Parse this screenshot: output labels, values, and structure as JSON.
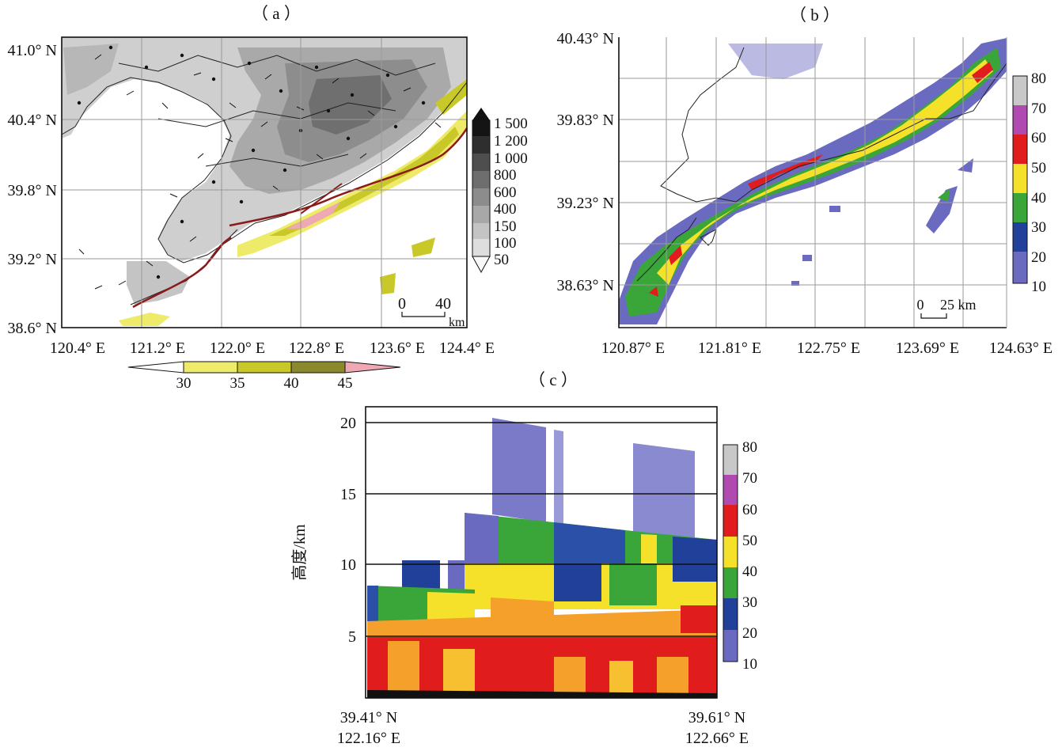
{
  "panels": {
    "a": {
      "label": "（ a ）",
      "lat_ticks": [
        "41.0° N",
        "40.4° N",
        "39.8° N",
        "39.2° N",
        "38.6° N"
      ],
      "lon_ticks": [
        "120.4° E",
        "121.2° E",
        "122.0° E",
        "122.8° E",
        "123.6° E",
        "124.4° E"
      ],
      "scale_zero": "0",
      "scale_value": "40",
      "scale_unit": "km",
      "terrain_colorbar": [
        "1 500",
        "1 200",
        "1 000",
        "800",
        "600",
        "400",
        "150",
        "100",
        "50"
      ],
      "shading_colorbar": [
        "30",
        "35",
        "40",
        "45"
      ]
    },
    "b": {
      "label": "（ b ）",
      "lat_ticks": [
        "40.43° N",
        "39.83° N",
        "39.23° N",
        "38.63° N"
      ],
      "lon_ticks": [
        "120.87° E",
        "121.81° E",
        "122.75° E",
        "123.69° E",
        "124.63° E"
      ],
      "scale_zero": "0",
      "scale_value": "25 km",
      "colorbar": [
        "80",
        "70",
        "60",
        "50",
        "40",
        "30",
        "20",
        "10"
      ]
    },
    "c": {
      "label": "（ c ）",
      "ylabel": "高度/km",
      "y_ticks": [
        "20",
        "15",
        "10",
        "5"
      ],
      "x_left": [
        "39.41° N",
        "122.16° E"
      ],
      "x_right": [
        "39.61° N",
        "122.66° E"
      ],
      "colorbar": [
        "80",
        "70",
        "60",
        "50",
        "40",
        "30",
        "20",
        "10"
      ]
    }
  },
  "colors": {
    "refl_80": "#c8c8c8",
    "refl_70": "#b04ab0",
    "refl_60": "#e01c1c",
    "refl_50": "#f5e12a",
    "refl_40": "#3aa63a",
    "refl_30": "#20409a",
    "refl_20": "#6a6ac0",
    "shade_30": "#eeea6a",
    "shade_35": "#c8c828",
    "shade_40": "#8a8a2c",
    "shade_45": "#f0a8b4",
    "front_line": "#8b1a1a"
  }
}
